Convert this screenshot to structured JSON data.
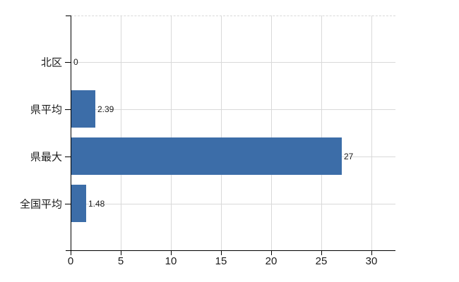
{
  "chart_data": {
    "type": "bar",
    "orientation": "horizontal",
    "title": "",
    "categories": [
      "北区",
      "県平均",
      "県最大",
      "全国平均"
    ],
    "values": [
      0,
      2.39,
      27,
      1.48
    ],
    "value_labels": [
      "0",
      "2.39",
      "27",
      "1.48"
    ],
    "x_ticks": [
      0,
      5,
      10,
      15,
      20,
      25,
      30
    ],
    "xlim": [
      0,
      32.4
    ],
    "grid": true,
    "legend": "none",
    "colors": {
      "bar": "#3c6da8",
      "grid": "#d9d9d9",
      "axis": "#000000",
      "text": "#1a1a1a",
      "background": "#ffffff"
    }
  }
}
